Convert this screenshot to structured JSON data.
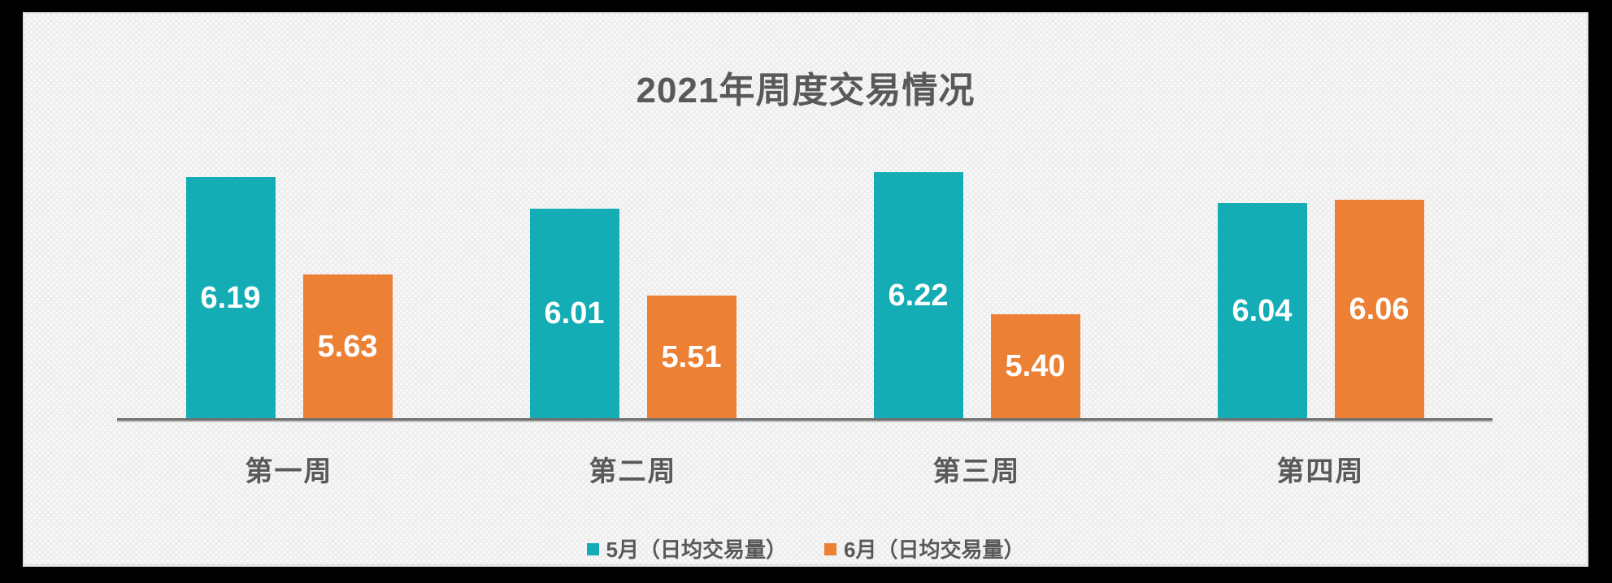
{
  "chart_data": {
    "type": "bar",
    "title": "2021年周度交易情况",
    "categories": [
      "第一周",
      "第二周",
      "第三周",
      "第四周"
    ],
    "series": [
      {
        "name": "5月（日均交易量）",
        "key": "may",
        "color": "#15ADB5",
        "values": [
          6.19,
          6.01,
          6.22,
          6.04
        ]
      },
      {
        "name": "6月（日均交易量）",
        "key": "june",
        "color": "#EC8135",
        "values": [
          5.63,
          5.51,
          5.4,
          6.06
        ]
      }
    ],
    "ylim": [
      4.8,
      6.3
    ],
    "grid": false,
    "y_axis_visible": false,
    "value_labels": "inside-center",
    "value_label_decimals": 2,
    "legend_position": "bottom-center",
    "colors": {
      "title_text": "#595959",
      "category_text": "#595959",
      "legend_text": "#595959",
      "value_label_text": "#FFFFFF",
      "axis_line": "#6F6F6F",
      "plot_background": "#EEEEEE",
      "frame_background": "#000000"
    }
  }
}
